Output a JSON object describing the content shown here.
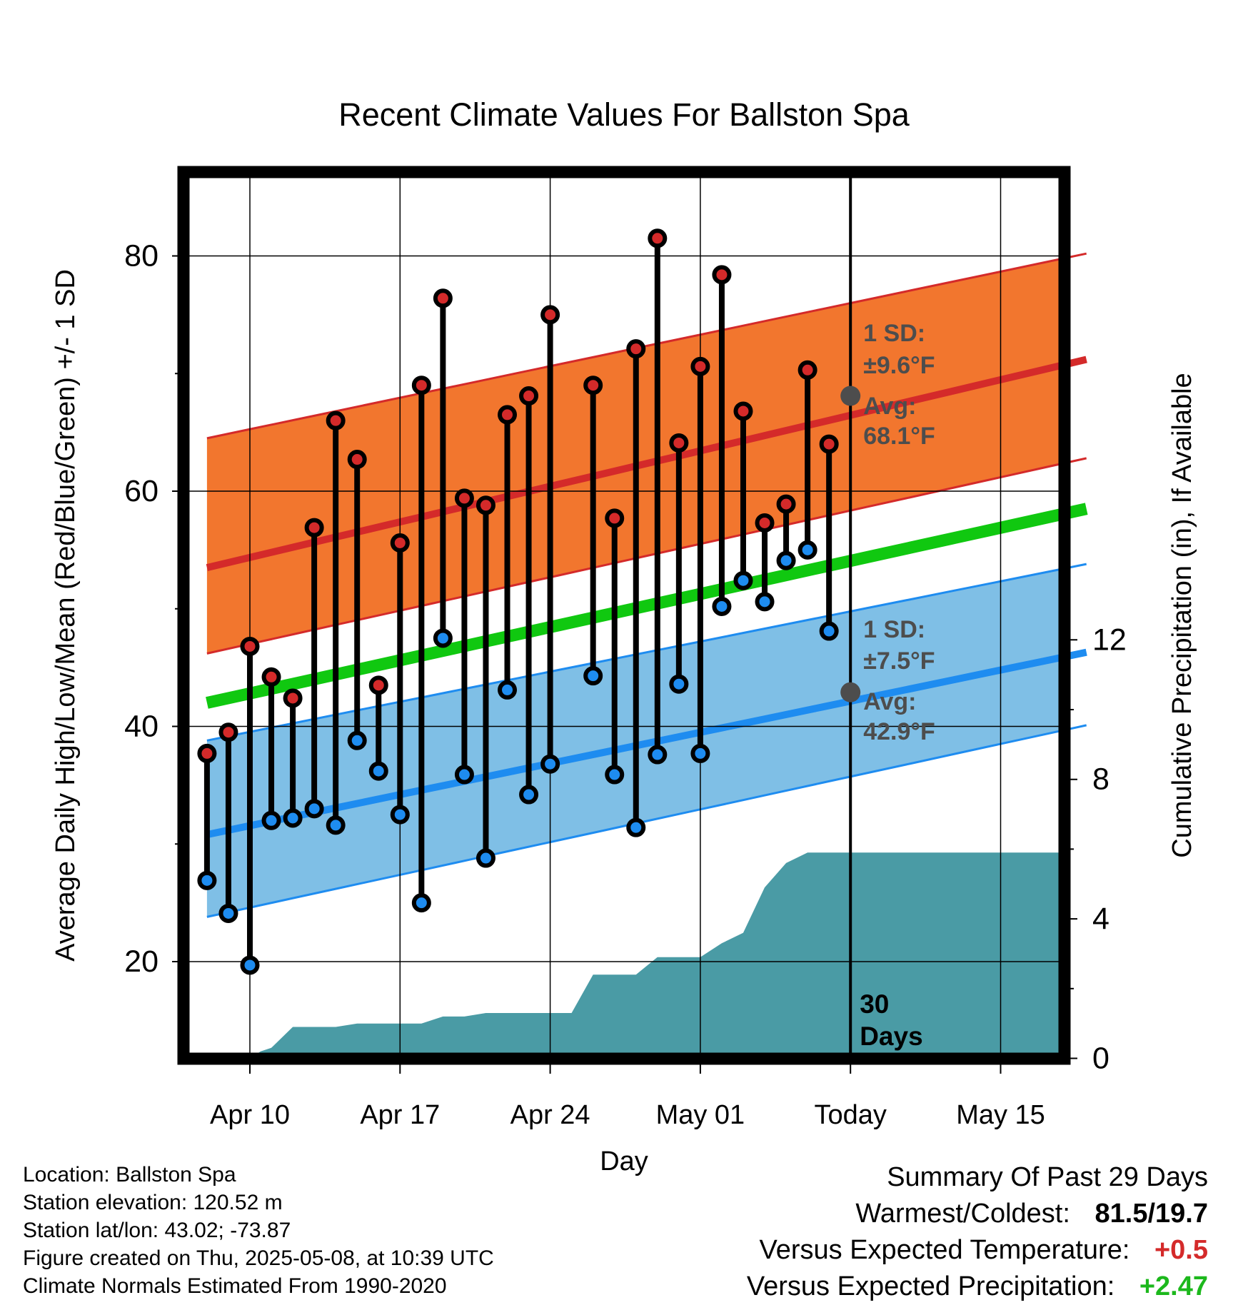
{
  "chart_data": {
    "type": "line",
    "title": "Recent Climate Values For Ballston Spa",
    "xlabel": "Day",
    "ylabel": "Average Daily High/Low/Mean (Red/Blue/Green) +/- 1 SD",
    "y2label": "Cumulative Precipitation (in), If Available",
    "x_range": [
      "2025-04-07",
      "2025-05-19"
    ],
    "ylim": [
      11,
      86
    ],
    "y2lim": [
      0,
      30
    ],
    "grid": true,
    "x_ticks": [
      {
        "date": "2025-04-10",
        "label": "Apr 10"
      },
      {
        "date": "2025-04-17",
        "label": "Apr 17"
      },
      {
        "date": "2025-04-24",
        "label": "Apr 24"
      },
      {
        "date": "2025-05-01",
        "label": "May 01"
      },
      {
        "date": "2025-05-08",
        "label": "Today"
      },
      {
        "date": "2025-05-15",
        "label": "May 15"
      }
    ],
    "y_ticks": [
      20,
      40,
      60,
      80
    ],
    "y2_ticks": [
      0,
      4,
      8,
      12
    ],
    "today": "2025-05-08",
    "today_label": "30\nDays",
    "normals": {
      "dates": [
        "2025-04-08",
        "2025-05-19"
      ],
      "high_avg": [
        53.5,
        71.2
      ],
      "high_upper": [
        64.5,
        80.2
      ],
      "high_lower": [
        46.2,
        62.8
      ],
      "low_avg": [
        30.8,
        46.3
      ],
      "low_upper": [
        38.8,
        53.8
      ],
      "low_lower": [
        23.8,
        40.1
      ],
      "mean": [
        42.0,
        58.5
      ]
    },
    "today_high": {
      "value": 68.1,
      "label_sd": "1 SD:",
      "sd": "±9.6°F",
      "label_avg": "Avg:",
      "avg": "68.1°F"
    },
    "today_low": {
      "value": 42.9,
      "label_sd": "1 SD:",
      "sd": "±7.5°F",
      "label_avg": "Avg:",
      "avg": "42.9°F"
    },
    "observed": {
      "dates": [
        "2025-04-08",
        "2025-04-09",
        "2025-04-10",
        "2025-04-11",
        "2025-04-12",
        "2025-04-13",
        "2025-04-14",
        "2025-04-15",
        "2025-04-16",
        "2025-04-17",
        "2025-04-18",
        "2025-04-19",
        "2025-04-20",
        "2025-04-21",
        "2025-04-22",
        "2025-04-23",
        "2025-04-24",
        "2025-04-26",
        "2025-04-27",
        "2025-04-28",
        "2025-04-29",
        "2025-04-30",
        "2025-05-01",
        "2025-05-02",
        "2025-05-03",
        "2025-05-04",
        "2025-05-05",
        "2025-05-06",
        "2025-05-07"
      ],
      "high": [
        37.7,
        39.5,
        46.8,
        44.2,
        42.4,
        56.9,
        66.0,
        62.7,
        43.5,
        55.6,
        69.0,
        76.4,
        59.4,
        58.8,
        66.5,
        68.1,
        75.0,
        69.0,
        57.7,
        72.1,
        81.5,
        64.1,
        70.6,
        78.4,
        66.8,
        57.3,
        58.9,
        70.3,
        64.0
      ],
      "low": [
        26.9,
        24.1,
        19.7,
        32.0,
        32.2,
        33.0,
        31.6,
        38.8,
        36.2,
        32.5,
        25.0,
        47.5,
        35.9,
        28.8,
        43.1,
        34.2,
        36.8,
        44.3,
        35.9,
        31.4,
        37.6,
        43.6,
        37.7,
        50.2,
        52.4,
        50.6,
        54.1,
        55.0,
        48.1
      ]
    },
    "precip_cumulative": {
      "dates": [
        "2025-04-10",
        "2025-04-10.5",
        "2025-04-11",
        "2025-04-12",
        "2025-04-13",
        "2025-04-14",
        "2025-04-15",
        "2025-04-16",
        "2025-04-17",
        "2025-04-18",
        "2025-04-19",
        "2025-04-20",
        "2025-04-21",
        "2025-04-22",
        "2025-04-23",
        "2025-04-24",
        "2025-04-25",
        "2025-04-26",
        "2025-04-27",
        "2025-04-28",
        "2025-04-29",
        "2025-04-30",
        "2025-05-01",
        "2025-05-02",
        "2025-05-03",
        "2025-05-04",
        "2025-05-05",
        "2025-05-06",
        "2025-05-07",
        "2025-05-08",
        "2025-05-19"
      ],
      "values": [
        0.0,
        0.2,
        0.3,
        0.9,
        0.9,
        0.9,
        1.0,
        1.0,
        1.0,
        1.0,
        1.2,
        1.2,
        1.3,
        1.3,
        1.3,
        1.3,
        1.3,
        2.4,
        2.4,
        2.4,
        2.9,
        2.9,
        2.9,
        3.3,
        3.6,
        4.9,
        5.6,
        5.9,
        5.9,
        5.9,
        5.9
      ]
    }
  },
  "colors": {
    "high_band": "#f2762e",
    "high_line": "#d42a2a",
    "low_band": "#7fbfe6",
    "low_line": "#1e8cf0",
    "mean_line": "#10c810",
    "precip": "#4a9ba5",
    "annotation": "#4d4d4d",
    "warm_delta": "#d42a2a",
    "wet_delta": "#1cb81c"
  },
  "info": {
    "location": "Location: Ballston Spa",
    "elevation": "Station elevation: 120.52 m",
    "latlon": "Station lat/lon: 43.02; -73.87",
    "created": "Figure created on Thu, 2025-05-08, at 10:39 UTC",
    "normals": "Climate Normals Estimated From 1990-2020"
  },
  "summary": {
    "title": "Summary Of Past 29 Days",
    "extremes_label": "Warmest/Coldest:",
    "warmest": "81.5",
    "sep": "/",
    "coldest": "19.7",
    "temp_label": "Versus Expected Temperature:",
    "temp_delta": "+0.5",
    "precip_label": "Versus Expected Precipitation:",
    "precip_delta": "+2.47"
  }
}
